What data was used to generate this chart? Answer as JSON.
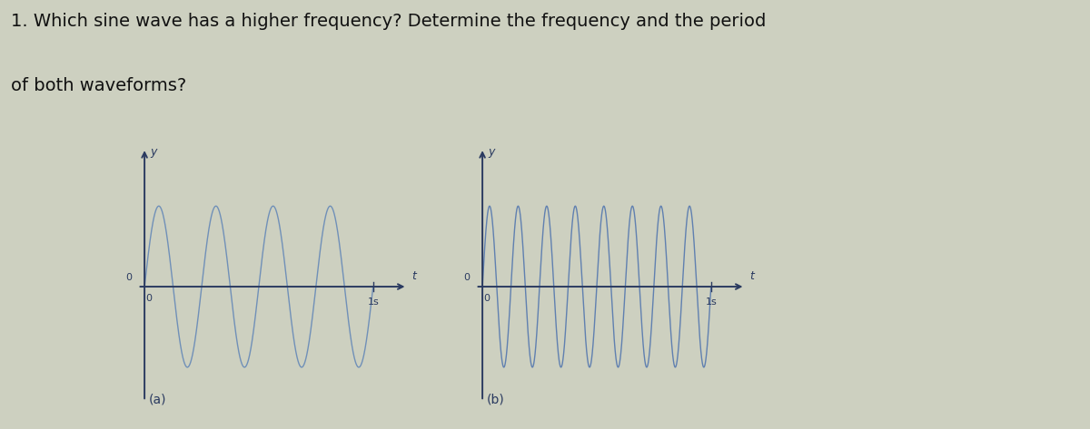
{
  "title_line1": "1. Which sine wave has a higher frequency? Determine the frequency and the period",
  "title_line2": "of both waveforms?",
  "title_fontsize": 14,
  "title_color": "#111111",
  "bg_color": "#cdd0c0",
  "wave_color_a": "#7090b8",
  "wave_color_b": "#6080b0",
  "freq_a": 4,
  "freq_b": 8,
  "amplitude": 1.0,
  "x_label": "t",
  "y_label": "y",
  "x_tick_label": "1s",
  "label_a": "(a)",
  "label_b": "(b)",
  "axis_color": "#2a3a60",
  "wave_lw": 1.0,
  "axis_lw": 1.4
}
